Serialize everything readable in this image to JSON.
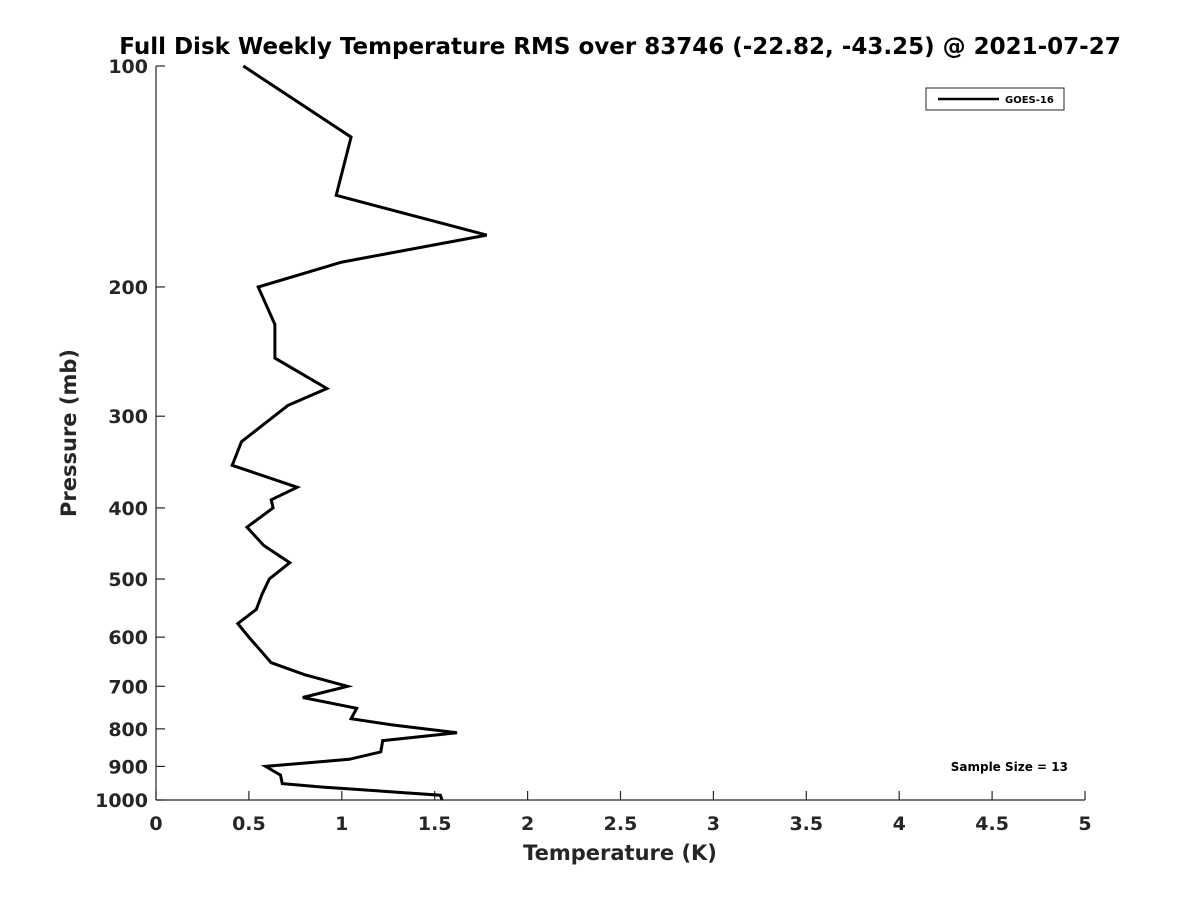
{
  "chart_data": {
    "type": "line",
    "title": "Full Disk Weekly Temperature RMS over 83746 (-22.82, -43.25) @ 2021-07-27",
    "xlabel": "Temperature (K)",
    "ylabel": "Pressure (mb)",
    "xlim": [
      0,
      5
    ],
    "ylim": [
      1000,
      100
    ],
    "y_scale": "log",
    "y_reversed": true,
    "x_ticks": [
      "0",
      "0.5",
      "1",
      "1.5",
      "2",
      "2.5",
      "3",
      "3.5",
      "4",
      "4.5",
      "5"
    ],
    "y_ticks": [
      "100",
      "200",
      "300",
      "400",
      "500",
      "600",
      "700",
      "800",
      "900",
      "1000"
    ],
    "grid": false,
    "legend_position": "top-right",
    "annotation": "Sample Size = 13",
    "series": [
      {
        "name": "GOES-16",
        "color": "#000000",
        "points": [
          {
            "x": 0.47,
            "y": 100
          },
          {
            "x": 1.05,
            "y": 125
          },
          {
            "x": 0.97,
            "y": 150
          },
          {
            "x": 1.78,
            "y": 170
          },
          {
            "x": 1.0,
            "y": 185
          },
          {
            "x": 0.55,
            "y": 200
          },
          {
            "x": 0.64,
            "y": 225
          },
          {
            "x": 0.64,
            "y": 250
          },
          {
            "x": 0.92,
            "y": 275
          },
          {
            "x": 0.71,
            "y": 290
          },
          {
            "x": 0.46,
            "y": 325
          },
          {
            "x": 0.41,
            "y": 350
          },
          {
            "x": 0.76,
            "y": 375
          },
          {
            "x": 0.62,
            "y": 390
          },
          {
            "x": 0.63,
            "y": 400
          },
          {
            "x": 0.49,
            "y": 425
          },
          {
            "x": 0.58,
            "y": 450
          },
          {
            "x": 0.72,
            "y": 475
          },
          {
            "x": 0.61,
            "y": 500
          },
          {
            "x": 0.57,
            "y": 525
          },
          {
            "x": 0.54,
            "y": 550
          },
          {
            "x": 0.44,
            "y": 575
          },
          {
            "x": 0.5,
            "y": 600
          },
          {
            "x": 0.62,
            "y": 650
          },
          {
            "x": 0.8,
            "y": 675
          },
          {
            "x": 1.03,
            "y": 700
          },
          {
            "x": 0.79,
            "y": 725
          },
          {
            "x": 1.08,
            "y": 750
          },
          {
            "x": 1.05,
            "y": 775
          },
          {
            "x": 1.27,
            "y": 790
          },
          {
            "x": 1.62,
            "y": 810
          },
          {
            "x": 1.22,
            "y": 830
          },
          {
            "x": 1.21,
            "y": 860
          },
          {
            "x": 1.04,
            "y": 880
          },
          {
            "x": 0.59,
            "y": 900
          },
          {
            "x": 0.67,
            "y": 925
          },
          {
            "x": 0.68,
            "y": 950
          },
          {
            "x": 0.89,
            "y": 960
          },
          {
            "x": 1.53,
            "y": 985
          },
          {
            "x": 1.54,
            "y": 1000
          }
        ]
      }
    ]
  }
}
